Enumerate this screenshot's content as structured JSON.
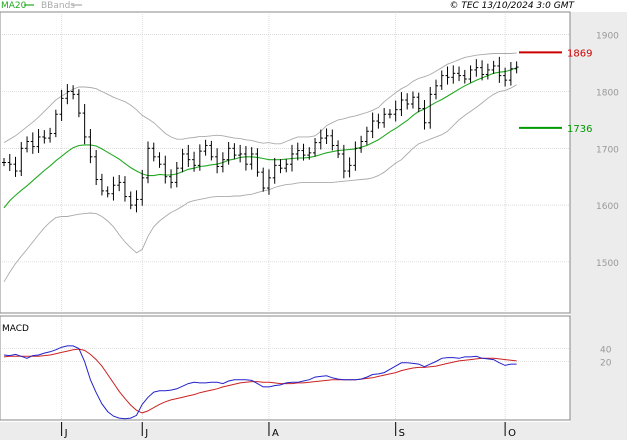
{
  "header": {
    "legend": [
      {
        "label": "MA20",
        "color": "#22aa22"
      },
      {
        "label": "BBands",
        "color": "#aaaaaa"
      }
    ],
    "attribution": "© TEC 13/10/2024 3:0 GMT"
  },
  "colors": {
    "background": "#ffffff",
    "axis_band": "#ececec",
    "grid": "#c8c8c8",
    "price_bars": "#000000",
    "ma20": "#22aa22",
    "bbands": "#aaaaaa",
    "macd_line": "#2222cc",
    "signal_line": "#cc2222",
    "resistance": "#cc0000",
    "support": "#009900"
  },
  "chart_data": [
    {
      "type": "ohlc",
      "name": "price-panel",
      "ylim": [
        1410,
        1940
      ],
      "y_ticks": [
        1500,
        1600,
        1700,
        1800,
        1900
      ],
      "x_tick_labels": [
        {
          "label": "J",
          "index": 10
        },
        {
          "label": "J",
          "index": 24
        },
        {
          "label": "A",
          "index": 46
        },
        {
          "label": "S",
          "index": 68
        },
        {
          "label": "O",
          "index": 87
        }
      ],
      "levels": [
        {
          "label": "1869",
          "value": 1869,
          "color": "#cc0000"
        },
        {
          "label": "1736",
          "value": 1736,
          "color": "#009900"
        }
      ],
      "closes": [
        1675,
        1672,
        1660,
        1700,
        1712,
        1703,
        1720,
        1718,
        1726,
        1760,
        1788,
        1800,
        1795,
        1762,
        1720,
        1685,
        1645,
        1625,
        1620,
        1635,
        1640,
        1615,
        1600,
        1610,
        1648,
        1700,
        1685,
        1672,
        1650,
        1640,
        1665,
        1690,
        1680,
        1670,
        1695,
        1705,
        1685,
        1668,
        1680,
        1700,
        1688,
        1690,
        1672,
        1690,
        1658,
        1630,
        1648,
        1670,
        1665,
        1672,
        1690,
        1696,
        1688,
        1692,
        1710,
        1718,
        1722,
        1705,
        1690,
        1660,
        1670,
        1700,
        1712,
        1730,
        1748,
        1745,
        1760,
        1760,
        1768,
        1785,
        1778,
        1790,
        1770,
        1745,
        1795,
        1810,
        1828,
        1825,
        1832,
        1828,
        1822,
        1838,
        1842,
        1830,
        1838,
        1845,
        1828,
        1820,
        1840,
        1843
      ],
      "series": [
        {
          "name": "MA20",
          "values": [
            1595,
            1608,
            1617,
            1626,
            1634,
            1643,
            1652,
            1661,
            1669,
            1678,
            1686,
            1694,
            1701,
            1705,
            1706,
            1706,
            1704,
            1699,
            1693,
            1687,
            1681,
            1673,
            1666,
            1660,
            1655,
            1652,
            1652,
            1654,
            1653,
            1653,
            1655,
            1659,
            1663,
            1665,
            1668,
            1669,
            1671,
            1672,
            1675,
            1679,
            1681,
            1684,
            1685,
            1685,
            1684,
            1682,
            1680,
            1680,
            1680,
            1681,
            1682,
            1683,
            1683,
            1684,
            1686,
            1689,
            1692,
            1694,
            1696,
            1697,
            1698,
            1699,
            1702,
            1705,
            1710,
            1715,
            1722,
            1729,
            1735,
            1742,
            1749,
            1758,
            1765,
            1769,
            1775,
            1781,
            1786,
            1792,
            1798,
            1804,
            1810,
            1815,
            1820,
            1824,
            1828,
            1832,
            1834,
            1835,
            1838,
            1842
          ]
        },
        {
          "name": "BBands upper",
          "values": [
            1710,
            1716,
            1722,
            1730,
            1738,
            1746,
            1755,
            1765,
            1775,
            1785,
            1792,
            1798,
            1804,
            1808,
            1808,
            1807,
            1805,
            1800,
            1795,
            1790,
            1786,
            1782,
            1776,
            1768,
            1758,
            1752,
            1745,
            1736,
            1726,
            1720,
            1716,
            1716,
            1718,
            1719,
            1721,
            1721,
            1722,
            1723,
            1722,
            1720,
            1718,
            1717,
            1715,
            1714,
            1711,
            1709,
            1710,
            1708,
            1708,
            1712,
            1716,
            1720,
            1720,
            1720,
            1722,
            1730,
            1740,
            1745,
            1750,
            1752,
            1755,
            1757,
            1760,
            1763,
            1767,
            1772,
            1782,
            1790,
            1798,
            1805,
            1810,
            1818,
            1823,
            1826,
            1830,
            1836,
            1842,
            1848,
            1852,
            1856,
            1860,
            1862,
            1864,
            1865,
            1866,
            1867,
            1867,
            1867,
            1867,
            1868
          ]
        },
        {
          "name": "BBands lower",
          "values": [
            1465,
            1482,
            1497,
            1510,
            1522,
            1535,
            1548,
            1560,
            1570,
            1578,
            1580,
            1580,
            1582,
            1584,
            1585,
            1586,
            1585,
            1580,
            1572,
            1562,
            1548,
            1535,
            1525,
            1516,
            1522,
            1545,
            1562,
            1572,
            1580,
            1587,
            1592,
            1598,
            1605,
            1608,
            1610,
            1612,
            1614,
            1615,
            1615,
            1615,
            1616,
            1616,
            1618,
            1619,
            1622,
            1625,
            1627,
            1631,
            1634,
            1636,
            1637,
            1639,
            1640,
            1640,
            1640,
            1640,
            1640,
            1640,
            1641,
            1642,
            1643,
            1644,
            1645,
            1646,
            1648,
            1652,
            1658,
            1666,
            1674,
            1680,
            1690,
            1700,
            1708,
            1712,
            1716,
            1720,
            1724,
            1730,
            1740,
            1750,
            1758,
            1765,
            1772,
            1780,
            1788,
            1795,
            1800,
            1802,
            1806,
            1812
          ]
        }
      ]
    },
    {
      "type": "line",
      "name": "MACD",
      "title": "MACD",
      "ylim": [
        -70,
        90
      ],
      "y_ticks": [
        20,
        40
      ],
      "series": [
        {
          "name": "MACD",
          "color": "#2222cc",
          "values": [
            30,
            29,
            31,
            28,
            25,
            29,
            30,
            33,
            35,
            38,
            42,
            44,
            44,
            40,
            20,
            -8,
            -28,
            -45,
            -57,
            -64,
            -67,
            -68,
            -67,
            -63,
            -46,
            -35,
            -27,
            -25,
            -25,
            -24,
            -22,
            -18,
            -14,
            -12,
            -13,
            -13,
            -12,
            -12,
            -14,
            -10,
            -8,
            -8,
            -8,
            -9,
            -14,
            -19,
            -19,
            -17,
            -16,
            -13,
            -12,
            -12,
            -10,
            -8,
            -4,
            -3,
            -2,
            -5,
            -7,
            -8,
            -8,
            -8,
            -7,
            -4,
            0,
            1,
            3,
            8,
            13,
            18,
            18,
            17,
            16,
            12,
            16,
            20,
            25,
            26,
            26,
            25,
            27,
            27,
            28,
            25,
            24,
            23,
            18,
            14,
            16,
            16
          ]
        },
        {
          "name": "Signal",
          "color": "#cc2222",
          "values": [
            27,
            28,
            28,
            28,
            28,
            28,
            28,
            29,
            30,
            32,
            34,
            36,
            38,
            39,
            37,
            31,
            23,
            13,
            0,
            -13,
            -26,
            -37,
            -47,
            -55,
            -59,
            -56,
            -51,
            -46,
            -42,
            -39,
            -37,
            -35,
            -33,
            -31,
            -28,
            -26,
            -24,
            -22,
            -19,
            -17,
            -15,
            -13,
            -12,
            -11,
            -11,
            -12,
            -12,
            -13,
            -14,
            -14,
            -14,
            -13,
            -13,
            -12,
            -11,
            -10,
            -9,
            -8,
            -8,
            -8,
            -8,
            -8,
            -7,
            -6,
            -5,
            -3,
            -1,
            1,
            3,
            6,
            8,
            10,
            11,
            11,
            12,
            13,
            15,
            17,
            19,
            21,
            22,
            23,
            24,
            25,
            25,
            25,
            24,
            23,
            22,
            21
          ]
        }
      ]
    }
  ]
}
